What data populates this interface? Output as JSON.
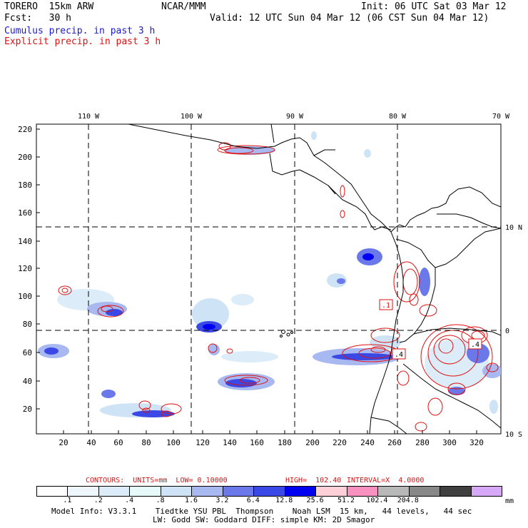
{
  "header": {
    "model": "TORERO  15km ARW",
    "center": "NCAR/MMM",
    "init": "Init: 06 UTC Sat 03 Mar 12",
    "fcst_label": "Fcst:   30 h",
    "valid": "Valid: 12 UTC Sun 04 Mar 12 (06 CST Sun 04 Mar 12)",
    "legend_cumulus": "Cumulus precip. in past 3 h",
    "legend_explicit": "Explicit precip. in past 3 h"
  },
  "colors": {
    "cumulus": "#1a1acc",
    "explicit": "#e01010",
    "coast": "#000000"
  },
  "map": {
    "lon_labels": [
      "110 W",
      "100 W",
      "90 W",
      "80 W",
      "70 W"
    ],
    "lat_labels": [
      "10 N",
      "0",
      "10 S"
    ],
    "y_ticks": [
      "20",
      "40",
      "60",
      "80",
      "100",
      "120",
      "140",
      "160",
      "180",
      "200",
      "220"
    ],
    "x_ticks": [
      "20",
      "40",
      "60",
      "80",
      "100",
      "120",
      "140",
      "160",
      "180",
      "200",
      "220",
      "240",
      "260",
      "280",
      "300",
      "320"
    ],
    "contour_labels": [
      ".1",
      ".4",
      ".4"
    ]
  },
  "contours_line": {
    "title": "CONTOURS:  UNITS=mm  LOW= 0.10000",
    "high": "HIGH=  102.40",
    "interval": "INTERVAL=X  4.0000"
  },
  "colorbar": {
    "colors": [
      "#ffffff",
      "#eef6fc",
      "#dcecf8",
      "#e6fafa",
      "#cfe3f6",
      "#a8b8f0",
      "#6a78ea",
      "#3a48e6",
      "#0000f0",
      "#ffd0d8",
      "#f890c0",
      "#b8b8b8",
      "#888888",
      "#404040",
      "#d8a8f8"
    ],
    "labels": [
      ".1",
      ".2",
      ".4",
      ".8",
      "1.6",
      "3.2",
      "6.4",
      "12.8",
      "25.6",
      "51.2",
      "102.4",
      "204.8"
    ],
    "unit": "mm"
  },
  "model_info": {
    "line1": "Model Info: V3.3.1    Tiedtke YSU PBL  Thompson    Noah LSM  15 km,   44 levels,   44 sec",
    "line2": "LW: Godd SW: Goddard DIFF: simple KM: 2D Smagor"
  }
}
